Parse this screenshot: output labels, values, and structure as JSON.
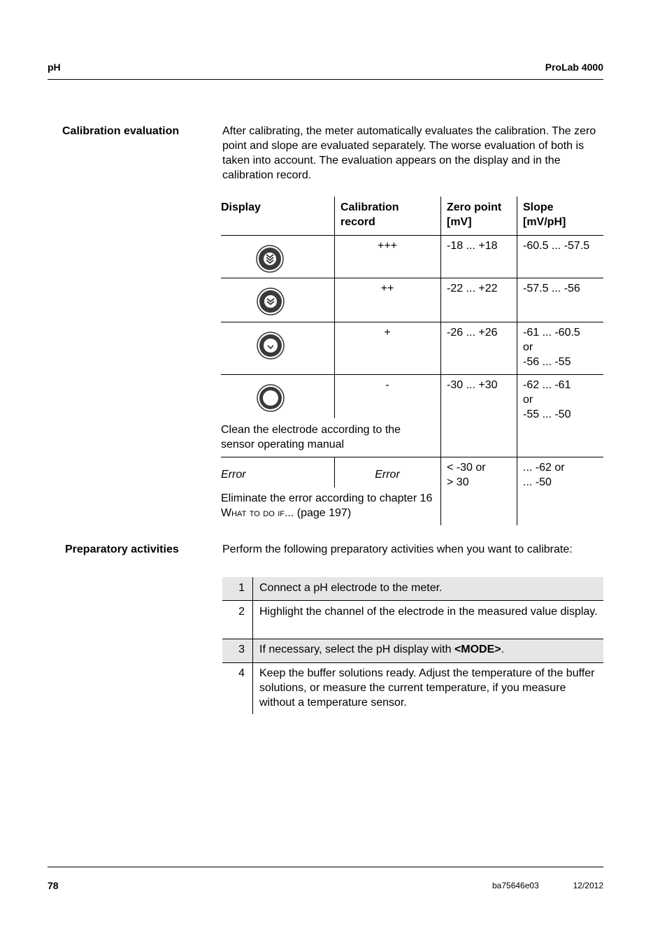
{
  "header": {
    "left": "pH",
    "right": "ProLab 4000"
  },
  "footer": {
    "page": "78",
    "doc": "ba75646e03",
    "date": "12/2012"
  },
  "calibration": {
    "heading": "Calibration evaluation",
    "intro": "After calibrating, the meter automatically evaluates the calibration. The zero point and slope are evaluated separately. The worse evaluation of both is taken into account. The evaluation appears on the display and in the calibration record.",
    "columns": [
      "Display",
      "Calibration record",
      "Zero point [mV]",
      "Slope [mV/pH]"
    ],
    "rows": [
      {
        "icon": "calibration-excellent-icon",
        "record": "+++",
        "zero": "-18 ... +18",
        "slope": [
          "-60.5 ... -57.5"
        ]
      },
      {
        "icon": "calibration-good-icon",
        "record": "++",
        "zero": "-22 ... +22",
        "slope": [
          "-57.5 ... -56"
        ]
      },
      {
        "icon": "calibration-fair-icon",
        "record": "+",
        "zero": "-26 ... +26",
        "slope": [
          "-61 ... -60.5",
          "or",
          "-56 ... -55"
        ]
      },
      {
        "icon": "calibration-poor-icon",
        "record": "-",
        "zero": "-30 ... +30",
        "slope": [
          "-62 ... -61",
          "or",
          "-55 ... -50"
        ],
        "note": "Clean the electrode according to the sensor operating manual"
      }
    ],
    "error_row": {
      "display": "Error",
      "record": "Error",
      "zero": [
        "< -30 or",
        "> 30"
      ],
      "slope": [
        "... -62 or",
        "... -50"
      ],
      "note_pre": "Eliminate the error according to chapter 16 ",
      "note_link": "What to do if...",
      "note_post": " (page 197)"
    }
  },
  "preparatory": {
    "heading": "Preparatory activities",
    "intro": "Perform the following preparatory activities when you want to calibrate:",
    "steps": [
      {
        "n": "1",
        "text": "Connect a pH electrode to the meter."
      },
      {
        "n": "2",
        "text": "Highlight the channel of the electrode in the measured value display."
      },
      {
        "n": "3",
        "text_pre": "If necessary, select the pH display with ",
        "key": "<MODE>",
        "text_post": "."
      },
      {
        "n": "4",
        "text": "Keep the buffer solutions ready. Adjust the temperature of the buffer solutions, or measure the current temperature, if you measure without a temperature sensor."
      }
    ]
  }
}
